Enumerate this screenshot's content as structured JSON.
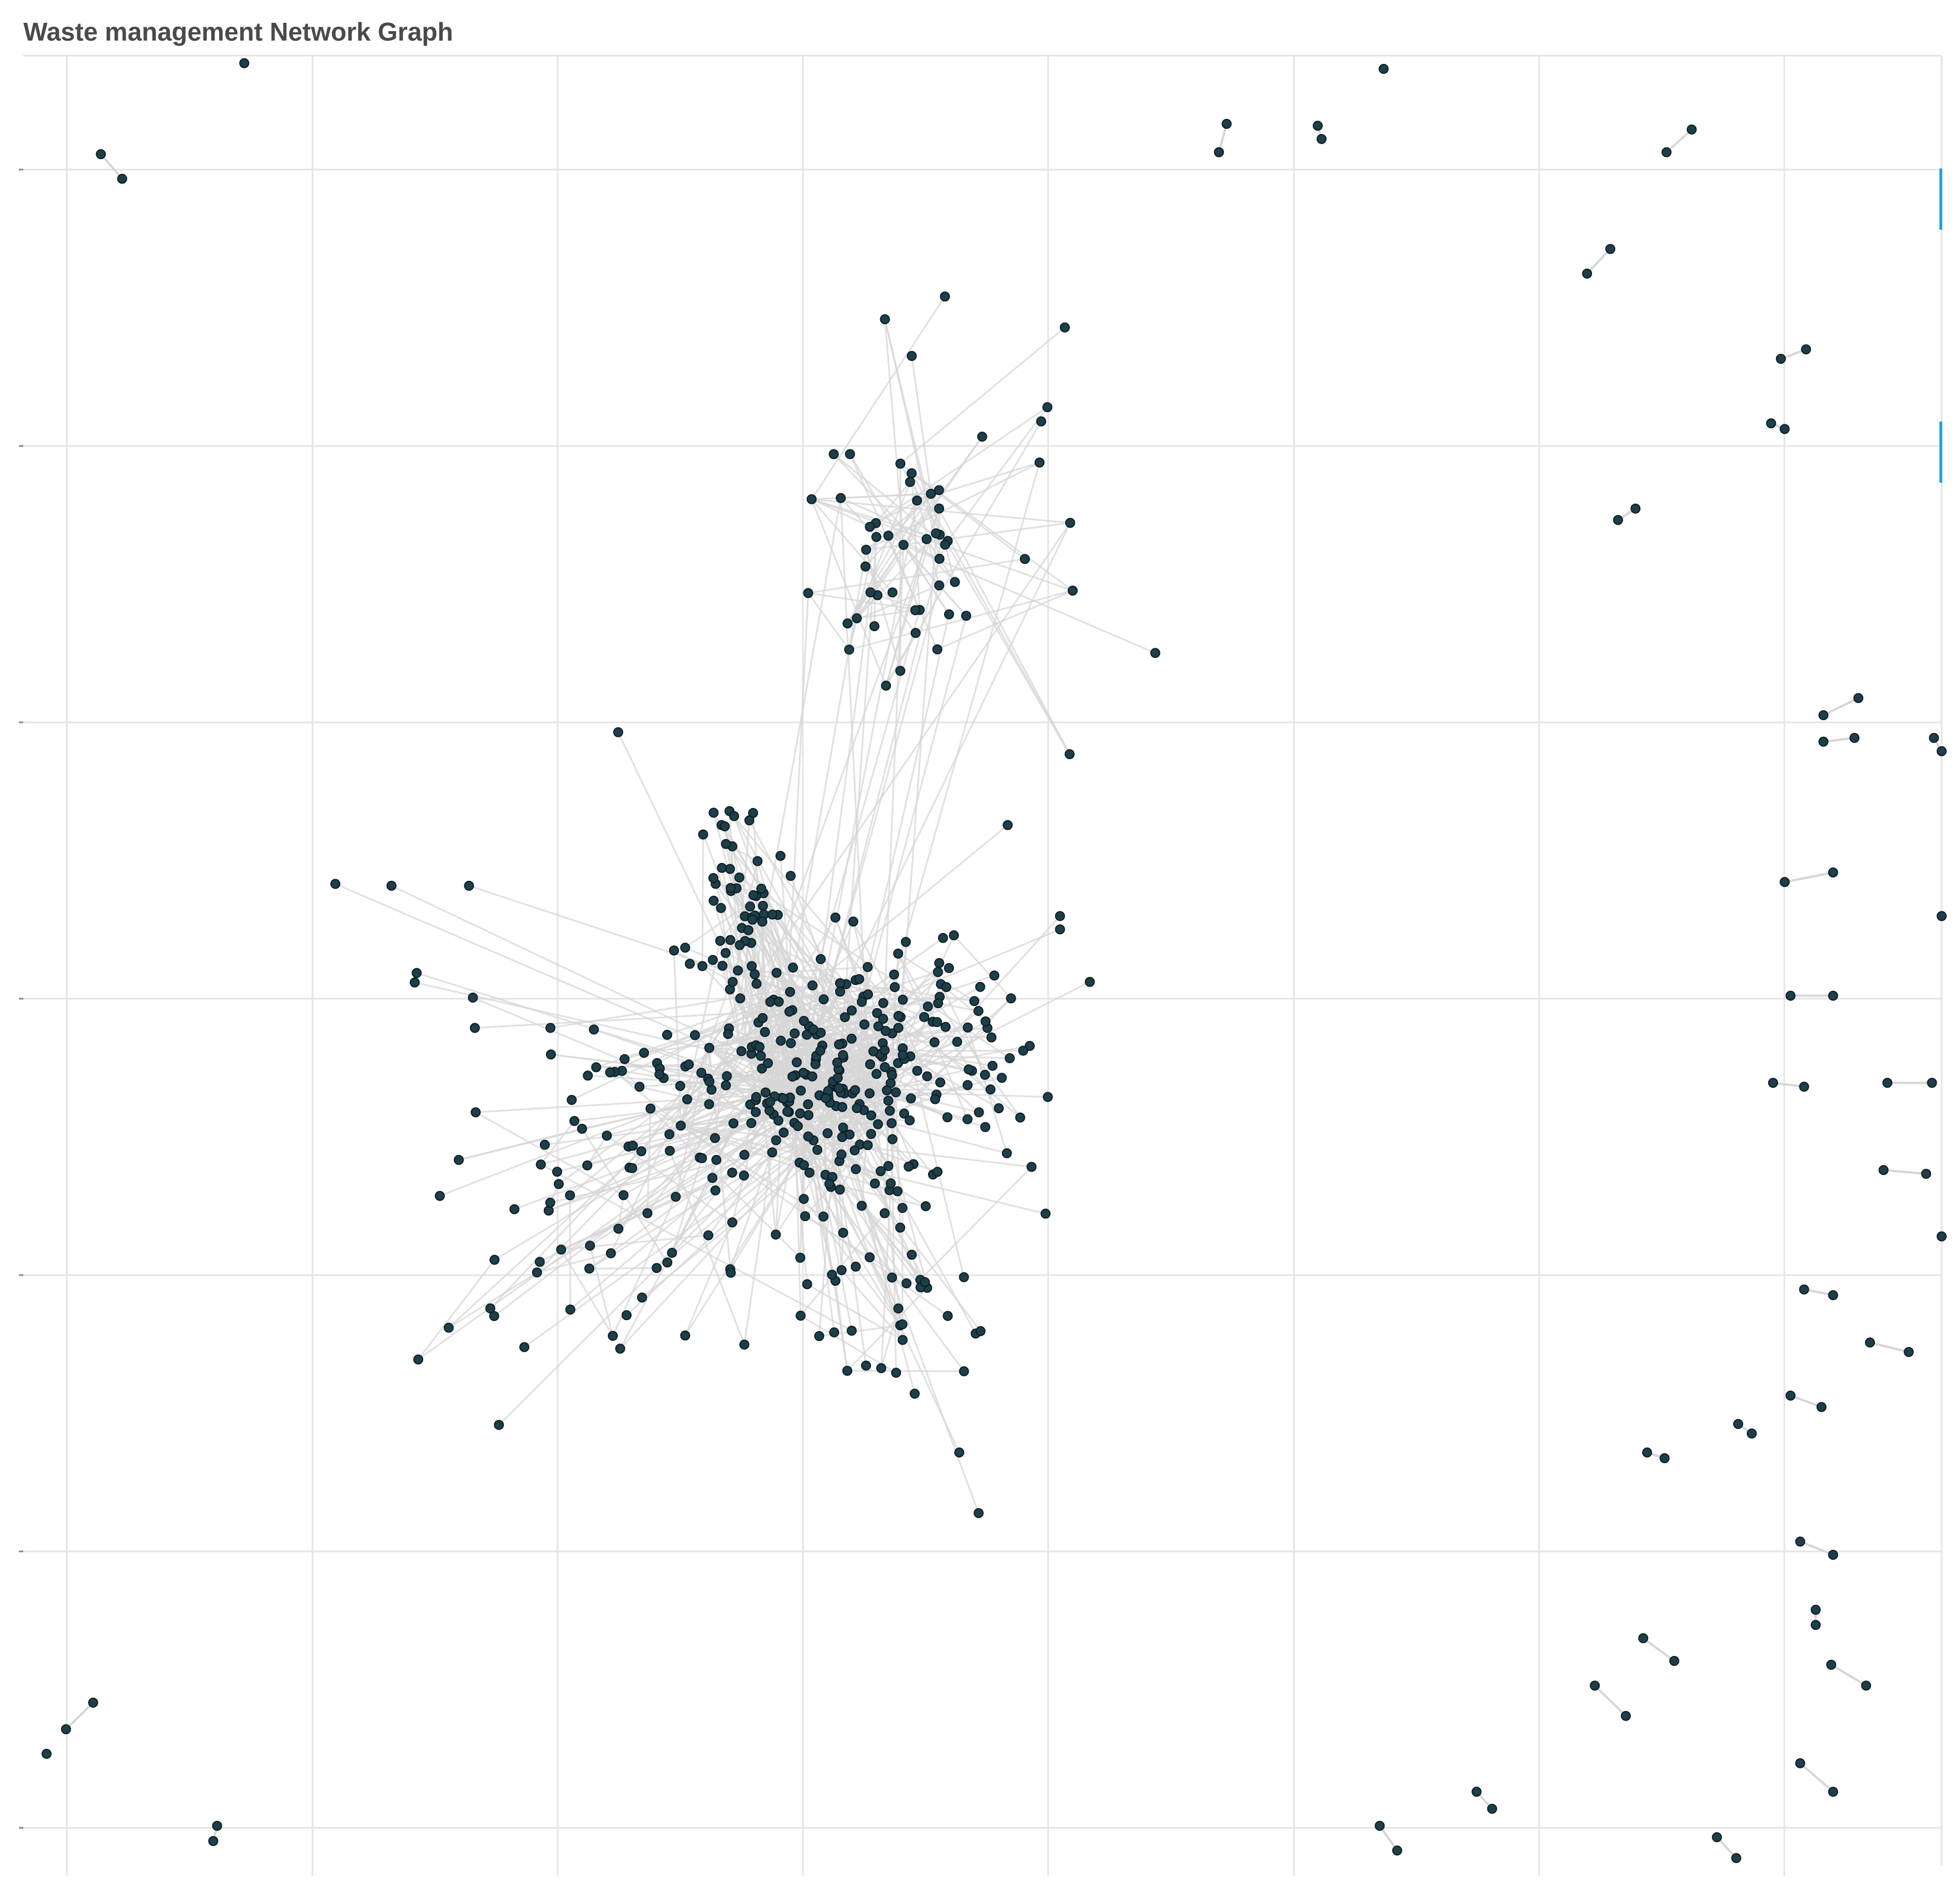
{
  "title": "Waste management Network Graph",
  "colors": {
    "background": "#ffffff",
    "grid": "#e4e4e4",
    "edge": "#d6d6d6",
    "node_fill": "#1d3f4a",
    "node_stroke": "#0d1d24",
    "scroll_marker": "#1aa3d9",
    "title": "#4a4a4a"
  },
  "chart_data": {
    "type": "network",
    "grid": true,
    "axes": {
      "x_ticks": 8,
      "y_ticks": 7,
      "tick_labels_visible": false
    },
    "clusters": [
      {
        "name": "core",
        "cx": 0.42,
        "cy": 0.565,
        "rx": 0.045,
        "ry": 0.045,
        "count": 210,
        "spread_to": "core"
      },
      {
        "name": "upper-left-knot",
        "cx": 0.37,
        "cy": 0.485,
        "rx": 0.02,
        "ry": 0.04,
        "count": 60,
        "spread_to": "core"
      },
      {
        "name": "left-knot",
        "cx": 0.32,
        "cy": 0.565,
        "rx": 0.025,
        "ry": 0.01,
        "count": 20,
        "spread_to": "core"
      },
      {
        "name": "lower-left-fan",
        "cx": 0.31,
        "cy": 0.64,
        "rx": 0.06,
        "ry": 0.05,
        "count": 60,
        "spread_to": "core"
      },
      {
        "name": "lower-fan",
        "cx": 0.45,
        "cy": 0.67,
        "rx": 0.04,
        "ry": 0.05,
        "count": 40,
        "spread_to": "core"
      },
      {
        "name": "right-fan",
        "cx": 0.48,
        "cy": 0.55,
        "rx": 0.035,
        "ry": 0.04,
        "count": 40,
        "spread_to": "core"
      },
      {
        "name": "top-branch",
        "cx": 0.47,
        "cy": 0.28,
        "rx": 0.055,
        "ry": 0.065,
        "count": 55,
        "spread_to": "top-branch"
      }
    ],
    "peripheral_pairs": [
      [
        [
          0.04,
          0.082
        ],
        [
          0.051,
          0.095
        ]
      ],
      [
        [
          0.621,
          0.066
        ],
        [
          0.617,
          0.081
        ]
      ],
      [
        [
          0.668,
          0.067
        ],
        [
          0.67,
          0.074
        ]
      ],
      [
        [
          0.848,
          0.081
        ],
        [
          0.861,
          0.069
        ]
      ],
      [
        [
          0.807,
          0.145
        ],
        [
          0.819,
          0.132
        ]
      ],
      [
        [
          0.907,
          0.19
        ],
        [
          0.92,
          0.185
        ]
      ],
      [
        [
          0.902,
          0.224
        ],
        [
          0.909,
          0.227
        ]
      ],
      [
        [
          0.823,
          0.275
        ],
        [
          0.832,
          0.269
        ]
      ],
      [
        [
          0.929,
          0.378
        ],
        [
          0.947,
          0.369
        ]
      ],
      [
        [
          0.929,
          0.392
        ],
        [
          0.945,
          0.39
        ]
      ],
      [
        [
          0.909,
          0.466
        ],
        [
          0.934,
          0.461
        ]
      ],
      [
        [
          0.912,
          0.526
        ],
        [
          0.934,
          0.526
        ]
      ],
      [
        [
          0.903,
          0.572
        ],
        [
          0.919,
          0.574
        ]
      ],
      [
        [
          0.962,
          0.572
        ],
        [
          0.985,
          0.572
        ]
      ],
      [
        [
          0.96,
          0.618
        ],
        [
          0.982,
          0.62
        ]
      ],
      [
        [
          0.919,
          0.681
        ],
        [
          0.934,
          0.684
        ]
      ],
      [
        [
          0.953,
          0.709
        ],
        [
          0.973,
          0.714
        ]
      ],
      [
        [
          0.912,
          0.737
        ],
        [
          0.928,
          0.743
        ]
      ],
      [
        [
          0.885,
          0.752
        ],
        [
          0.892,
          0.757
        ]
      ],
      [
        [
          0.838,
          0.767
        ],
        [
          0.847,
          0.77
        ]
      ],
      [
        [
          0.917,
          0.814
        ],
        [
          0.934,
          0.821
        ]
      ],
      [
        [
          0.925,
          0.85
        ],
        [
          0.925,
          0.858
        ]
      ],
      [
        [
          0.836,
          0.865
        ],
        [
          0.852,
          0.877
        ]
      ],
      [
        [
          0.933,
          0.879
        ],
        [
          0.951,
          0.89
        ]
      ],
      [
        [
          0.811,
          0.89
        ],
        [
          0.827,
          0.906
        ]
      ],
      [
        [
          0.917,
          0.931
        ],
        [
          0.934,
          0.946
        ]
      ],
      [
        [
          0.75,
          0.946
        ],
        [
          0.758,
          0.955
        ]
      ],
      [
        [
          0.7,
          0.964
        ],
        [
          0.709,
          0.977
        ]
      ],
      [
        [
          0.874,
          0.97
        ],
        [
          0.884,
          0.981
        ]
      ],
      [
        [
          0.036,
          0.899
        ],
        [
          0.022,
          0.913
        ]
      ],
      [
        [
          0.1,
          0.964
        ],
        [
          0.098,
          0.972
        ]
      ],
      [
        [
          0.986,
          0.39
        ],
        [
          0.99,
          0.397
        ]
      ]
    ],
    "peripheral_singles": [
      [
        0.114,
        0.034
      ],
      [
        0.702,
        0.037
      ],
      [
        0.012,
        0.926
      ],
      [
        0.99,
        0.484
      ],
      [
        0.99,
        0.653
      ]
    ]
  }
}
